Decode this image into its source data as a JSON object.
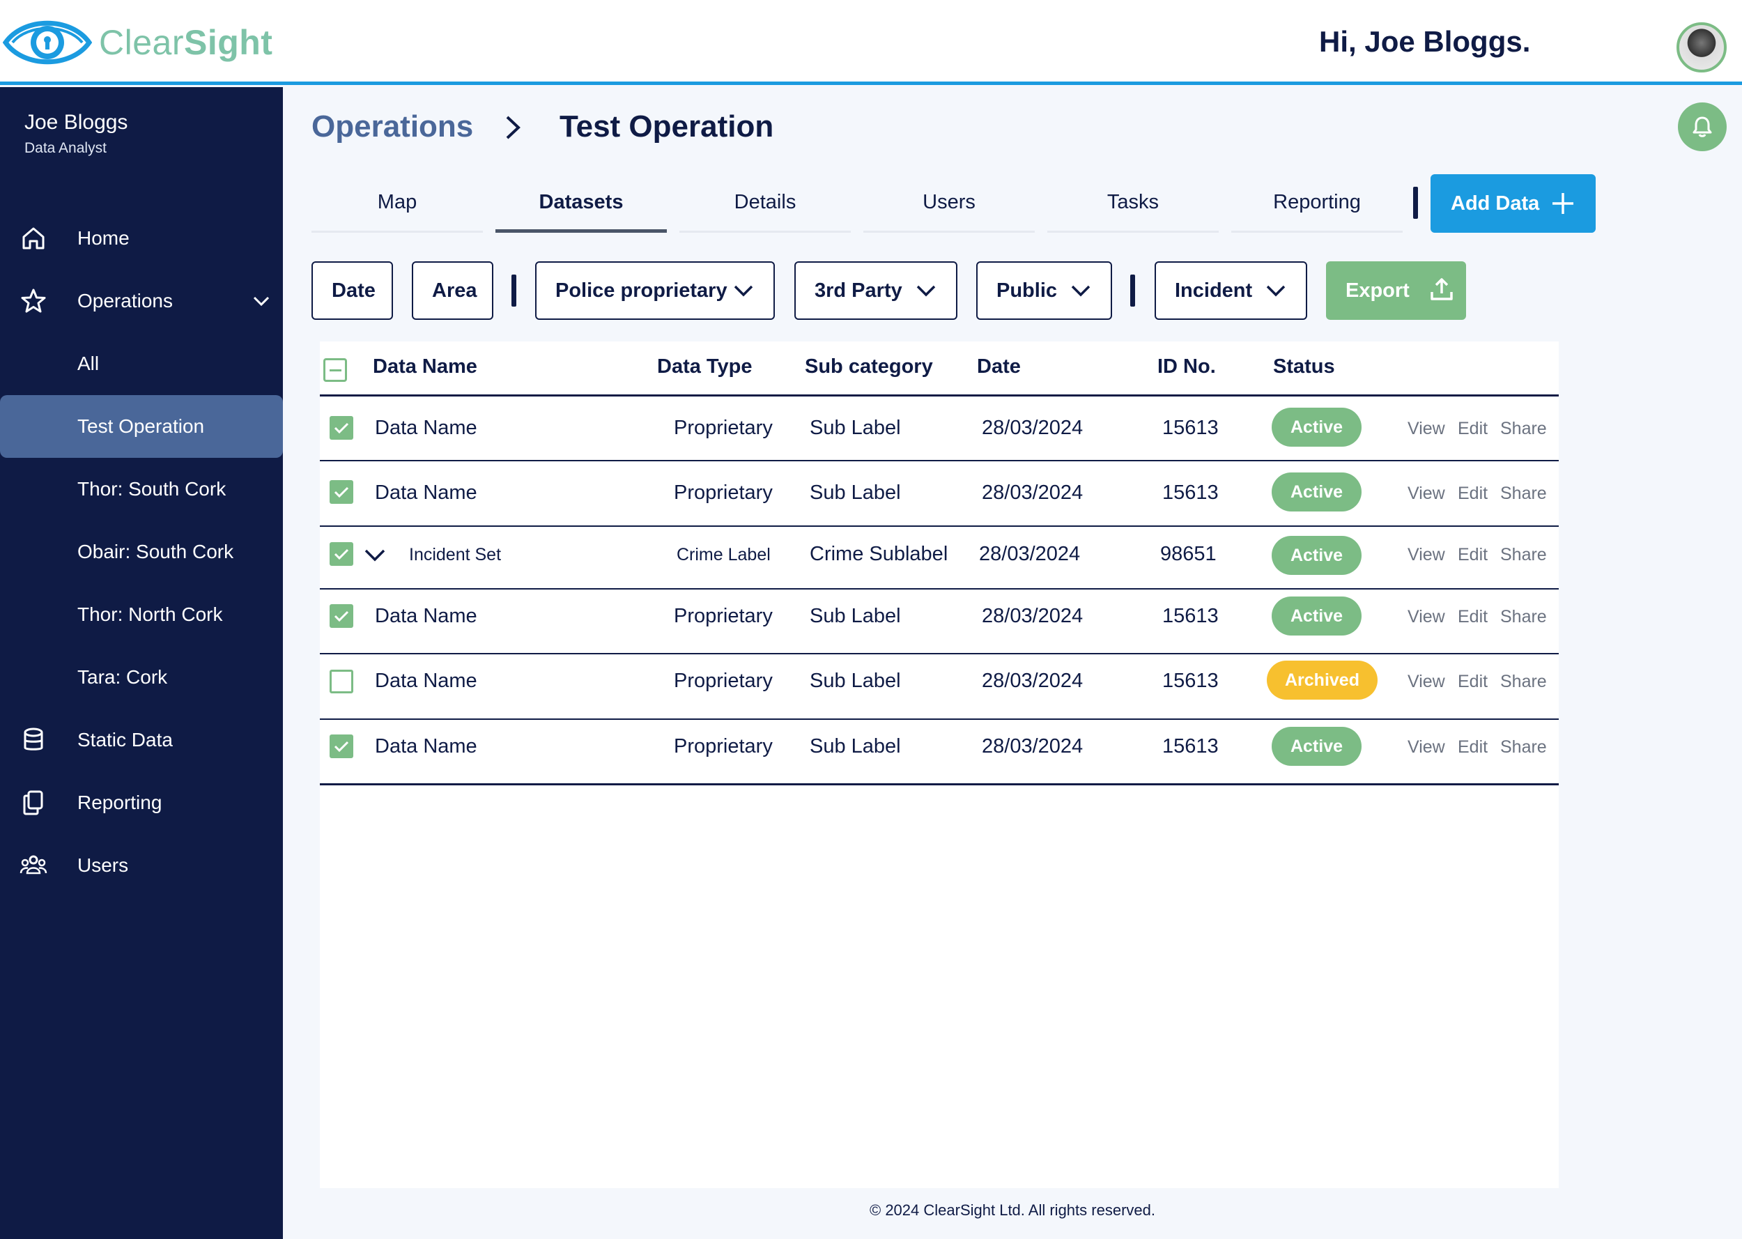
{
  "brand": {
    "name_light": "Clear",
    "name_bold": "Sight"
  },
  "header": {
    "greeting": "Hi, Joe Bloggs."
  },
  "sidebar": {
    "user_name": "Joe Bloggs",
    "user_role": "Data Analyst",
    "items": [
      {
        "label": "Home",
        "icon": "home-icon"
      },
      {
        "label": "Operations",
        "icon": "star-icon"
      },
      {
        "label": "All"
      },
      {
        "label": "Test Operation"
      },
      {
        "label": "Thor: South Cork"
      },
      {
        "label": "Obair: South Cork"
      },
      {
        "label": "Thor: North Cork"
      },
      {
        "label": "Tara: Cork"
      },
      {
        "label": "Static Data",
        "icon": "database-icon"
      },
      {
        "label": "Reporting",
        "icon": "documents-icon"
      },
      {
        "label": "Users",
        "icon": "users-icon"
      }
    ]
  },
  "breadcrumb": {
    "root": "Operations",
    "current": "Test Operation"
  },
  "tabs": [
    "Map",
    "Datasets",
    "Details",
    "Users",
    "Tasks",
    "Reporting"
  ],
  "add_data_label": "Add Data",
  "filters": {
    "date": "Date",
    "area": "Area",
    "police": "Police proprietary",
    "third_party": "3rd Party",
    "public": "Public",
    "incident": "Incident",
    "export": "Export"
  },
  "table": {
    "headers": [
      "Data Name",
      "Data Type",
      "Sub category",
      "Date",
      "ID No.",
      "Status"
    ],
    "actions": [
      "View",
      "Edit",
      "Share"
    ],
    "rows": [
      {
        "name": "Data Name",
        "type": "Proprietary",
        "sub": "Sub Label",
        "date": "28/03/2024",
        "id": "15613",
        "status": "Active",
        "checked": true
      },
      {
        "name": "Data Name",
        "type": "Proprietary",
        "sub": "Sub Label",
        "date": "28/03/2024",
        "id": "15613",
        "status": "Active",
        "checked": true
      },
      {
        "name": "Incident Set",
        "type": "Crime Label",
        "sub": "Crime Sublabel",
        "date": "28/03/2024",
        "id": "98651",
        "status": "Active",
        "checked": true
      },
      {
        "name": "Data Name",
        "type": "Proprietary",
        "sub": "Sub Label",
        "date": "28/03/2024",
        "id": "15613",
        "status": "Active",
        "checked": true
      },
      {
        "name": "Data Name",
        "type": "Proprietary",
        "sub": "Sub Label",
        "date": "28/03/2024",
        "id": "15613",
        "status": "Archived",
        "checked": false
      },
      {
        "name": "Data Name",
        "type": "Proprietary",
        "sub": "Sub Label",
        "date": "28/03/2024",
        "id": "15613",
        "status": "Active",
        "checked": true
      }
    ]
  },
  "footer": "© 2024 ClearSight Ltd. All rights reserved.",
  "colors": {
    "navy": "#0f1b45",
    "blue": "#1b9be0",
    "green": "#7cbc85",
    "amber": "#f7c02f",
    "sidebar_active": "#4a6799"
  }
}
